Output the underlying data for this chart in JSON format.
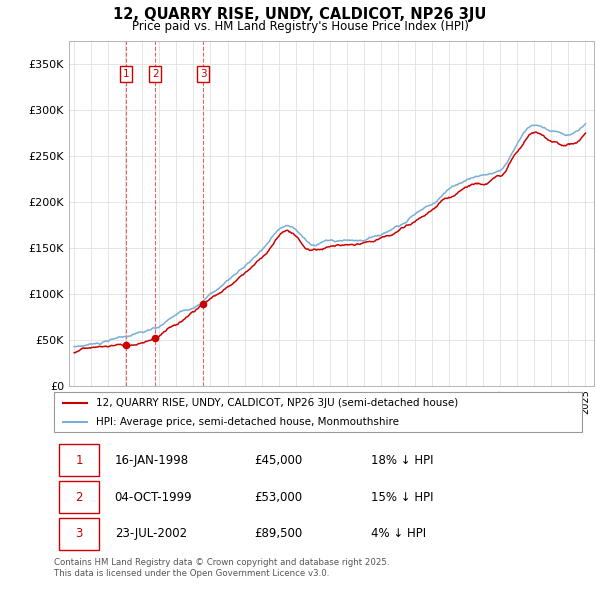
{
  "title": "12, QUARRY RISE, UNDY, CALDICOT, NP26 3JU",
  "subtitle": "Price paid vs. HM Land Registry's House Price Index (HPI)",
  "ylim": [
    0,
    375000
  ],
  "yticks": [
    0,
    50000,
    100000,
    150000,
    200000,
    250000,
    300000,
    350000
  ],
  "ytick_labels": [
    "£0",
    "£50K",
    "£100K",
    "£150K",
    "£200K",
    "£250K",
    "£300K",
    "£350K"
  ],
  "xlim_start": 1994.7,
  "xlim_end": 2025.5,
  "purchases": [
    {
      "date_x": 1998.04,
      "price": 45000,
      "label": "1"
    },
    {
      "date_x": 1999.75,
      "price": 53000,
      "label": "2"
    },
    {
      "date_x": 2002.56,
      "price": 89500,
      "label": "3"
    }
  ],
  "purchase_table": [
    {
      "num": "1",
      "date": "16-JAN-1998",
      "price": "£45,000",
      "hpi": "18% ↓ HPI"
    },
    {
      "num": "2",
      "date": "04-OCT-1999",
      "price": "£53,000",
      "hpi": "15% ↓ HPI"
    },
    {
      "num": "3",
      "date": "23-JUL-2002",
      "price": "£89,500",
      "hpi": "4% ↓ HPI"
    }
  ],
  "legend_line1": "12, QUARRY RISE, UNDY, CALDICOT, NP26 3JU (semi-detached house)",
  "legend_line2": "HPI: Average price, semi-detached house, Monmouthshire",
  "footer": "Contains HM Land Registry data © Crown copyright and database right 2025.\nThis data is licensed under the Open Government Licence v3.0.",
  "price_line_color": "#cc0000",
  "hpi_line_color": "#7aaed6",
  "vline_color": "#cc0000",
  "background_color": "#ffffff",
  "grid_color": "#e0e0e0"
}
